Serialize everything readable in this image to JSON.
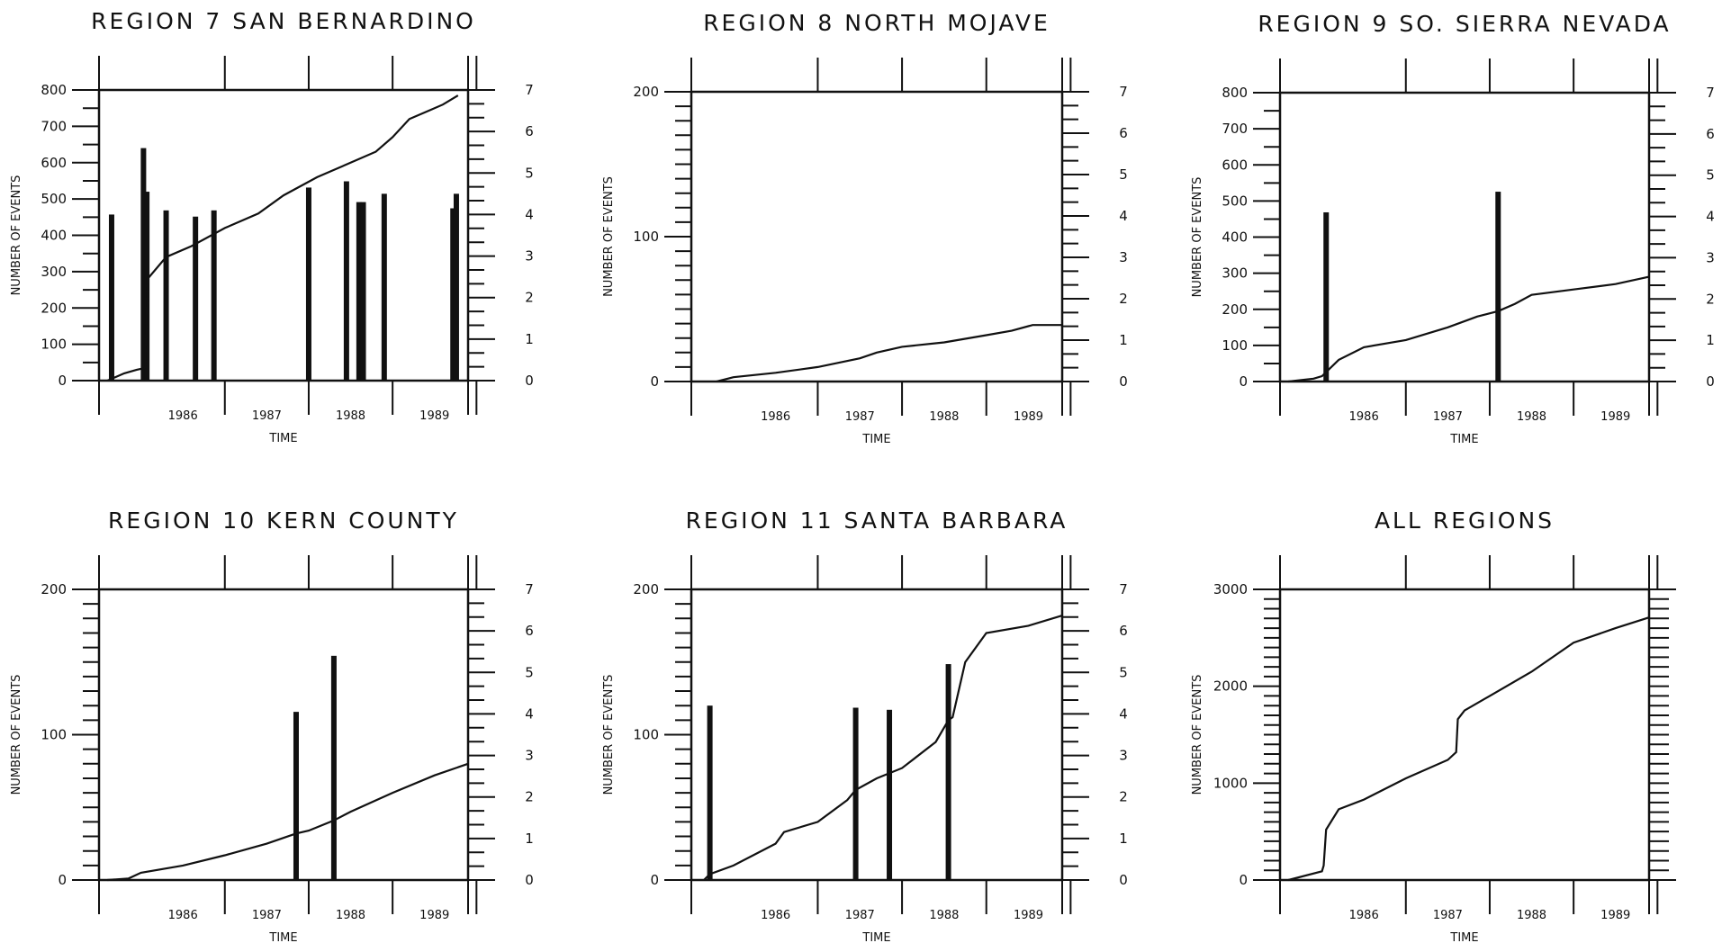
{
  "chart_data": [
    {
      "type": "line+bar",
      "title": "REGION 7 SAN BERNARDINO",
      "xlabel": "TIME",
      "ylabel": "NUMBER OF EVENTS",
      "xlim": [
        1985.5,
        1989.9
      ],
      "ylim": [
        0,
        800
      ],
      "y2lim": [
        0,
        7
      ],
      "x_ticks": [
        "1986",
        "1987",
        "1988",
        "1989"
      ],
      "y_ticks": [
        "0",
        "100",
        "200",
        "300",
        "400",
        "500",
        "600",
        "700",
        "800"
      ],
      "y2_ticks": [
        "0",
        "1",
        "2",
        "3",
        "4",
        "5",
        "6",
        "7"
      ],
      "cumulative": {
        "x": [
          1985.6,
          1985.8,
          1985.95,
          1986.05,
          1986.08,
          1986.3,
          1986.6,
          1987.0,
          1987.4,
          1987.7,
          1988.1,
          1988.5,
          1988.8,
          1989.0,
          1989.2,
          1989.45,
          1989.6,
          1989.78
        ],
        "y": [
          0,
          20,
          30,
          35,
          280,
          340,
          370,
          420,
          460,
          510,
          560,
          600,
          630,
          670,
          720,
          745,
          760,
          785
        ]
      },
      "magnitudes": {
        "x": [
          1985.65,
          1986.03,
          1986.07,
          1986.3,
          1986.65,
          1986.87,
          1988.0,
          1988.45,
          1988.6,
          1988.65,
          1988.9,
          1989.72,
          1989.76
        ],
        "mag": [
          4.0,
          5.6,
          4.55,
          4.1,
          3.95,
          4.1,
          4.65,
          4.8,
          4.3,
          4.3,
          4.5,
          4.15,
          4.5
        ]
      }
    },
    {
      "type": "line+bar",
      "title": "REGION 8 NORTH MOJAVE",
      "xlabel": "TIME",
      "ylabel": "NUMBER OF EVENTS",
      "xlim": [
        1985.5,
        1989.9
      ],
      "ylim": [
        0,
        200
      ],
      "y2lim": [
        0,
        7
      ],
      "x_ticks": [
        "1986",
        "1987",
        "1988",
        "1989"
      ],
      "y_ticks": [
        "0",
        "100",
        "200"
      ],
      "y2_ticks": [
        "0",
        "1",
        "2",
        "3",
        "4",
        "5",
        "6",
        "7"
      ],
      "cumulative": {
        "x": [
          1985.8,
          1986.0,
          1986.5,
          1987.0,
          1987.5,
          1987.7,
          1988.0,
          1988.5,
          1989.0,
          1989.3,
          1989.55,
          1989.9
        ],
        "y": [
          0,
          3,
          6,
          10,
          16,
          20,
          24,
          27,
          32,
          35,
          39,
          39
        ]
      },
      "magnitudes": {
        "x": [],
        "mag": []
      }
    },
    {
      "type": "line+bar",
      "title": "REGION 9 SO. SIERRA NEVADA",
      "xlabel": "TIME",
      "ylabel": "NUMBER OF EVENTS",
      "xlim": [
        1985.5,
        1989.9
      ],
      "ylim": [
        0,
        800
      ],
      "y2lim": [
        0,
        7
      ],
      "x_ticks": [
        "1986",
        "1987",
        "1988",
        "1989"
      ],
      "y_ticks": [
        "0",
        "100",
        "200",
        "300",
        "400",
        "500",
        "600",
        "700",
        "800"
      ],
      "y2_ticks": [
        "0",
        "1",
        "2",
        "3",
        "4",
        "5",
        "6",
        "7"
      ],
      "cumulative": {
        "x": [
          1985.6,
          1985.9,
          1986.0,
          1986.2,
          1986.5,
          1987.0,
          1987.5,
          1987.85,
          1988.1,
          1988.3,
          1988.5,
          1989.0,
          1989.5,
          1989.9
        ],
        "y": [
          0,
          8,
          15,
          60,
          95,
          115,
          150,
          180,
          195,
          215,
          240,
          255,
          270,
          290
        ]
      },
      "magnitudes": {
        "x": [
          1986.05,
          1988.1
        ],
        "mag": [
          4.1,
          4.6
        ]
      }
    },
    {
      "type": "line+bar",
      "title": "REGION 10 KERN COUNTY",
      "xlabel": "TIME",
      "ylabel": "NUMBER OF EVENTS",
      "xlim": [
        1985.5,
        1989.9
      ],
      "ylim": [
        0,
        200
      ],
      "y2lim": [
        0,
        7
      ],
      "x_ticks": [
        "1986",
        "1987",
        "1988",
        "1989"
      ],
      "y_ticks": [
        "0",
        "100",
        "200"
      ],
      "y2_ticks": [
        "0",
        "1",
        "2",
        "3",
        "4",
        "5",
        "6",
        "7"
      ],
      "cumulative": {
        "x": [
          1985.6,
          1985.85,
          1986.0,
          1986.5,
          1987.0,
          1987.5,
          1987.85,
          1988.0,
          1988.3,
          1988.5,
          1989.0,
          1989.5,
          1989.9
        ],
        "y": [
          0,
          1,
          5,
          10,
          17,
          25,
          32,
          34,
          41,
          47,
          60,
          72,
          80
        ]
      },
      "magnitudes": {
        "x": [
          1987.85,
          1988.3
        ],
        "mag": [
          4.05,
          5.4
        ]
      }
    },
    {
      "type": "line+bar",
      "title": "REGION 11 SANTA BARBARA",
      "xlabel": "TIME",
      "ylabel": "NUMBER OF EVENTS",
      "xlim": [
        1985.5,
        1989.9
      ],
      "ylim": [
        0,
        200
      ],
      "y2lim": [
        0,
        7
      ],
      "x_ticks": [
        "1986",
        "1987",
        "1988",
        "1989"
      ],
      "y_ticks": [
        "0",
        "100",
        "200"
      ],
      "y2_ticks": [
        "0",
        "1",
        "2",
        "3",
        "4",
        "5",
        "6",
        "7"
      ],
      "cumulative": {
        "x": [
          1985.65,
          1985.72,
          1986.0,
          1986.5,
          1986.6,
          1987.0,
          1987.35,
          1987.45,
          1987.7,
          1988.0,
          1988.4,
          1988.55,
          1988.6,
          1988.75,
          1989.0,
          1989.5,
          1989.9
        ],
        "y": [
          0,
          4,
          10,
          25,
          33,
          40,
          55,
          62,
          70,
          77,
          95,
          110,
          112,
          150,
          170,
          175,
          182
        ]
      },
      "magnitudes": {
        "x": [
          1985.72,
          1987.45,
          1987.85,
          1988.55
        ],
        "mag": [
          4.2,
          4.15,
          4.1,
          5.2
        ]
      }
    },
    {
      "type": "line",
      "title": "ALL REGIONS",
      "xlabel": "TIME",
      "ylabel": "NUMBER OF EVENTS",
      "xlim": [
        1985.5,
        1989.9
      ],
      "ylim": [
        0,
        3000
      ],
      "x_ticks": [
        "1986",
        "1987",
        "1988",
        "1989"
      ],
      "y_ticks": [
        "0",
        "1000",
        "2000",
        "3000"
      ],
      "cumulative": {
        "x": [
          1985.6,
          1986.0,
          1986.02,
          1986.05,
          1986.2,
          1986.5,
          1987.0,
          1987.5,
          1987.6,
          1987.62,
          1987.7,
          1988.0,
          1988.5,
          1989.0,
          1989.5,
          1989.9
        ],
        "y": [
          0,
          90,
          150,
          520,
          730,
          830,
          1050,
          1240,
          1320,
          1660,
          1750,
          1900,
          2150,
          2450,
          2600,
          2710
        ]
      },
      "magnitudes": {
        "x": [],
        "mag": []
      }
    }
  ]
}
